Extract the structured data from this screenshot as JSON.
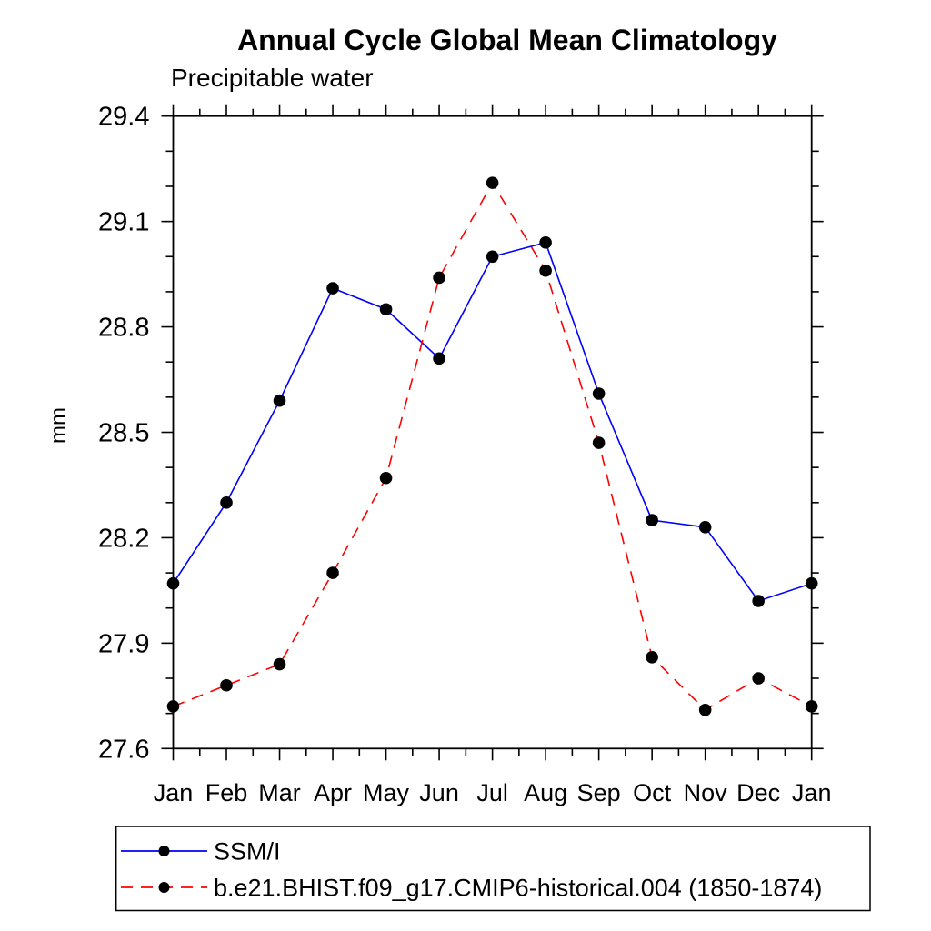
{
  "page": {
    "background_color": "#ffffff",
    "axis_color": "#000000",
    "text_color": "#000000"
  },
  "chart_data": {
    "type": "line",
    "title": "Annual Cycle Global Mean Climatology",
    "subtitle": "Precipitable water",
    "ylabel": "mm",
    "xlabel": "",
    "x_categories": [
      "Jan",
      "Feb",
      "Mar",
      "Apr",
      "May",
      "Jun",
      "Jul",
      "Aug",
      "Sep",
      "Oct",
      "Nov",
      "Dec",
      "Jan"
    ],
    "ylim": [
      27.6,
      29.4
    ],
    "ytick_major_step": 0.3,
    "ytick_minor_step": 0.1,
    "ytick_labels": [
      "27.6",
      "27.9",
      "28.2",
      "28.5",
      "28.8",
      "29.1",
      "29.4"
    ],
    "x_minor_ticks": "half-month",
    "grid": false,
    "legend_position": "bottom-left-box",
    "marker": "filled-circle",
    "marker_color": "#000000",
    "series": [
      {
        "name": "SSM/I",
        "color": "#0000ff",
        "line_style": "solid",
        "values": [
          28.07,
          28.3,
          28.59,
          28.91,
          28.85,
          28.71,
          29.0,
          29.04,
          28.61,
          28.25,
          28.23,
          28.02,
          28.07
        ]
      },
      {
        "name": "b.e21.BHIST.f09_g17.CMIP6-historical.004 (1850-1874)",
        "color": "#ff0000",
        "line_style": "dashed",
        "values": [
          27.72,
          27.78,
          27.84,
          28.1,
          28.37,
          28.94,
          29.21,
          28.96,
          28.47,
          27.86,
          27.71,
          27.8,
          27.72
        ]
      }
    ]
  }
}
